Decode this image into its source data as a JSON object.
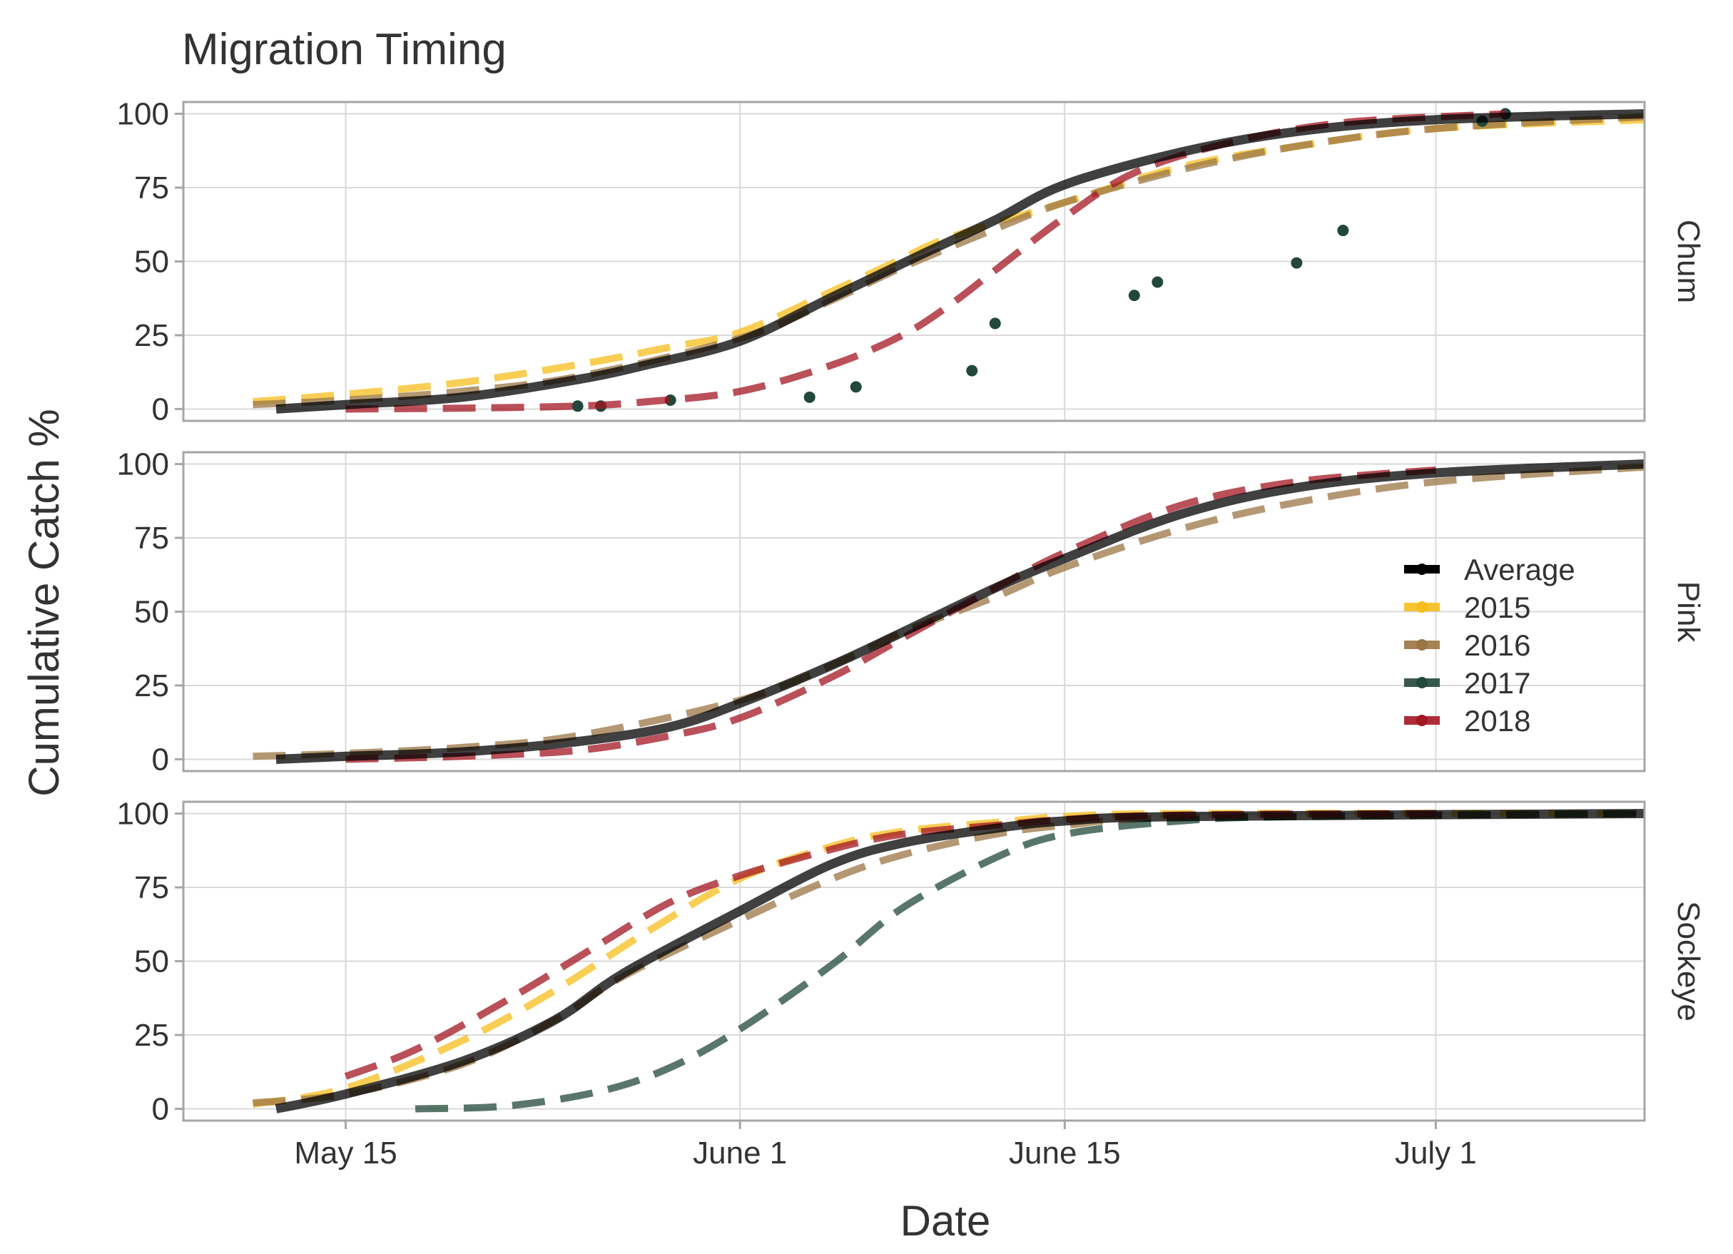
{
  "chart_data": {
    "type": "line",
    "title": "Migration Timing",
    "xlabel": "Date",
    "ylabel": "Cumulative Catch %",
    "x_range": [
      "2018-05-08",
      "2018-07-10"
    ],
    "x_ticks": [
      {
        "date": "2018-05-15",
        "label": "May 15"
      },
      {
        "date": "2018-06-01",
        "label": "June 1"
      },
      {
        "date": "2018-06-15",
        "label": "June 15"
      },
      {
        "date": "2018-07-01",
        "label": "July 1"
      }
    ],
    "ylim": [
      -4,
      104
    ],
    "y_ticks": [
      0,
      25,
      50,
      75,
      100
    ],
    "grid": true,
    "legend": {
      "placement": "right (inside Pink panel)",
      "entries": [
        {
          "name": "Average",
          "color": "#000000"
        },
        {
          "name": "2015",
          "color": "#F5BE1C"
        },
        {
          "name": "2016",
          "color": "#9B7544"
        },
        {
          "name": "2017",
          "color": "#21483A"
        },
        {
          "name": "2018",
          "color": "#A31622"
        }
      ]
    },
    "panels": [
      {
        "label": "Chum",
        "series": [
          {
            "name": "Average",
            "style": "solid",
            "points": [
              [
                "2018-05-12",
                0
              ],
              [
                "2018-05-15",
                1.5
              ],
              [
                "2018-05-20",
                4
              ],
              [
                "2018-05-25",
                10
              ],
              [
                "2018-05-28",
                15
              ],
              [
                "2018-06-01",
                23
              ],
              [
                "2018-06-05",
                38
              ],
              [
                "2018-06-09",
                53
              ],
              [
                "2018-06-12",
                64
              ],
              [
                "2018-06-15",
                76
              ],
              [
                "2018-06-20",
                87
              ],
              [
                "2018-06-25",
                94
              ],
              [
                "2018-07-01",
                98
              ],
              [
                "2018-07-10",
                100
              ]
            ]
          },
          {
            "name": "2015",
            "style": "dashed",
            "points": [
              [
                "2018-05-11",
                2.5
              ],
              [
                "2018-05-15",
                5
              ],
              [
                "2018-05-20",
                9
              ],
              [
                "2018-05-25",
                15
              ],
              [
                "2018-05-29",
                21
              ],
              [
                "2018-06-01",
                26
              ],
              [
                "2018-06-05",
                40
              ],
              [
                "2018-06-08",
                51
              ],
              [
                "2018-06-10",
                58
              ],
              [
                "2018-06-15",
                70
              ],
              [
                "2018-06-20",
                82
              ],
              [
                "2018-06-25",
                89
              ],
              [
                "2018-07-01",
                95
              ],
              [
                "2018-07-10",
                98
              ]
            ]
          },
          {
            "name": "2016",
            "style": "dashed",
            "points": [
              [
                "2018-05-11",
                1.5
              ],
              [
                "2018-05-15",
                3
              ],
              [
                "2018-05-20",
                6
              ],
              [
                "2018-05-25",
                11
              ],
              [
                "2018-06-01",
                24
              ],
              [
                "2018-06-05",
                37
              ],
              [
                "2018-06-08",
                48
              ],
              [
                "2018-06-12",
                61
              ],
              [
                "2018-06-15",
                70
              ],
              [
                "2018-06-20",
                81
              ],
              [
                "2018-06-25",
                89
              ],
              [
                "2018-07-01",
                95
              ],
              [
                "2018-07-10",
                99
              ]
            ]
          },
          {
            "name": "2018",
            "style": "dashed",
            "points": [
              [
                "2018-05-15",
                0
              ],
              [
                "2018-05-20",
                0.3
              ],
              [
                "2018-05-25",
                1
              ],
              [
                "2018-05-28",
                2.5
              ],
              [
                "2018-06-01",
                6
              ],
              [
                "2018-06-05",
                15
              ],
              [
                "2018-06-08",
                25
              ],
              [
                "2018-06-10",
                35
              ],
              [
                "2018-06-12",
                47
              ],
              [
                "2018-06-15",
                65
              ],
              [
                "2018-06-18",
                80
              ],
              [
                "2018-06-22",
                90
              ],
              [
                "2018-06-27",
                97
              ],
              [
                "2018-07-04",
                100
              ]
            ]
          },
          {
            "name": "2017",
            "style": "points",
            "points": [
              [
                "2018-05-25",
                1
              ],
              [
                "2018-05-26",
                1
              ],
              [
                "2018-05-29",
                3
              ],
              [
                "2018-06-04",
                4
              ],
              [
                "2018-06-06",
                7.5
              ],
              [
                "2018-06-11",
                13
              ],
              [
                "2018-06-12",
                29
              ],
              [
                "2018-06-18",
                38.5
              ],
              [
                "2018-06-19",
                43
              ],
              [
                "2018-06-25",
                49.5
              ],
              [
                "2018-06-27",
                60.5
              ],
              [
                "2018-07-03",
                97.5
              ],
              [
                "2018-07-04",
                100
              ]
            ]
          }
        ]
      },
      {
        "label": "Pink",
        "series": [
          {
            "name": "Average",
            "style": "solid",
            "points": [
              [
                "2018-05-12",
                0
              ],
              [
                "2018-05-15",
                1
              ],
              [
                "2018-05-20",
                2.5
              ],
              [
                "2018-05-25",
                6
              ],
              [
                "2018-05-29",
                11
              ],
              [
                "2018-06-01",
                19
              ],
              [
                "2018-06-05",
                32
              ],
              [
                "2018-06-08",
                43
              ],
              [
                "2018-06-12",
                58
              ],
              [
                "2018-06-15",
                68
              ],
              [
                "2018-06-20",
                83
              ],
              [
                "2018-06-25",
                92
              ],
              [
                "2018-07-01",
                97
              ],
              [
                "2018-07-10",
                100
              ]
            ]
          },
          {
            "name": "2016",
            "style": "dashed",
            "points": [
              [
                "2018-05-11",
                1
              ],
              [
                "2018-05-15",
                2
              ],
              [
                "2018-05-20",
                4
              ],
              [
                "2018-05-25",
                8
              ],
              [
                "2018-06-01",
                20
              ],
              [
                "2018-06-05",
                32
              ],
              [
                "2018-06-08",
                43
              ],
              [
                "2018-06-12",
                55
              ],
              [
                "2018-06-15",
                65
              ],
              [
                "2018-06-20",
                78
              ],
              [
                "2018-06-25",
                87
              ],
              [
                "2018-07-01",
                94
              ],
              [
                "2018-07-10",
                99
              ]
            ]
          },
          {
            "name": "2018",
            "style": "dashed",
            "points": [
              [
                "2018-05-15",
                0
              ],
              [
                "2018-05-20",
                1
              ],
              [
                "2018-05-25",
                3
              ],
              [
                "2018-05-29",
                8
              ],
              [
                "2018-06-01",
                14
              ],
              [
                "2018-06-05",
                28
              ],
              [
                "2018-06-08",
                41
              ],
              [
                "2018-06-12",
                58
              ],
              [
                "2018-06-15",
                70
              ],
              [
                "2018-06-20",
                86
              ],
              [
                "2018-06-25",
                94
              ],
              [
                "2018-07-01",
                98
              ]
            ]
          }
        ]
      },
      {
        "label": "Sockeye",
        "series": [
          {
            "name": "Average",
            "style": "solid",
            "points": [
              [
                "2018-05-12",
                0
              ],
              [
                "2018-05-15",
                5
              ],
              [
                "2018-05-20",
                16
              ],
              [
                "2018-05-24",
                30
              ],
              [
                "2018-05-27",
                46
              ],
              [
                "2018-06-01",
                67
              ],
              [
                "2018-06-05",
                83
              ],
              [
                "2018-06-08",
                90
              ],
              [
                "2018-06-12",
                95
              ],
              [
                "2018-06-15",
                97.5
              ],
              [
                "2018-06-20",
                99
              ],
              [
                "2018-07-10",
                100
              ]
            ]
          },
          {
            "name": "2015",
            "style": "dashed",
            "points": [
              [
                "2018-05-11",
                1.5
              ],
              [
                "2018-05-15",
                7
              ],
              [
                "2018-05-20",
                23
              ],
              [
                "2018-05-24",
                40
              ],
              [
                "2018-05-28",
                60
              ],
              [
                "2018-06-01",
                78
              ],
              [
                "2018-06-05",
                89
              ],
              [
                "2018-06-08",
                94
              ],
              [
                "2018-06-12",
                97
              ],
              [
                "2018-06-15",
                99
              ],
              [
                "2018-06-20",
                100
              ],
              [
                "2018-07-10",
                100
              ]
            ]
          },
          {
            "name": "2016",
            "style": "dashed",
            "points": [
              [
                "2018-05-11",
                2
              ],
              [
                "2018-05-15",
                5
              ],
              [
                "2018-05-20",
                15
              ],
              [
                "2018-05-24",
                30
              ],
              [
                "2018-05-27",
                45
              ],
              [
                "2018-06-01",
                64
              ],
              [
                "2018-06-05",
                78
              ],
              [
                "2018-06-08",
                86
              ],
              [
                "2018-06-12",
                93
              ],
              [
                "2018-06-15",
                96
              ],
              [
                "2018-06-20",
                98.5
              ],
              [
                "2018-07-10",
                100
              ]
            ]
          },
          {
            "name": "2017",
            "style": "dashed",
            "points": [
              [
                "2018-05-18",
                0
              ],
              [
                "2018-05-22",
                1
              ],
              [
                "2018-05-26",
                6
              ],
              [
                "2018-05-29",
                14
              ],
              [
                "2018-06-01",
                27
              ],
              [
                "2018-06-05",
                49
              ],
              [
                "2018-06-08",
                68
              ],
              [
                "2018-06-12",
                85
              ],
              [
                "2018-06-15",
                93
              ],
              [
                "2018-06-20",
                97.5
              ],
              [
                "2018-06-25",
                99
              ],
              [
                "2018-07-10",
                100
              ]
            ]
          },
          {
            "name": "2018",
            "style": "dashed",
            "points": [
              [
                "2018-05-15",
                11
              ],
              [
                "2018-05-18",
                20
              ],
              [
                "2018-05-22",
                37
              ],
              [
                "2018-05-26",
                56
              ],
              [
                "2018-05-29",
                70
              ],
              [
                "2018-06-01",
                79
              ],
              [
                "2018-06-05",
                88
              ],
              [
                "2018-06-08",
                93
              ],
              [
                "2018-06-12",
                96
              ],
              [
                "2018-06-15",
                98
              ],
              [
                "2018-06-20",
                99.5
              ],
              [
                "2018-07-01",
                100
              ]
            ]
          }
        ]
      }
    ]
  }
}
